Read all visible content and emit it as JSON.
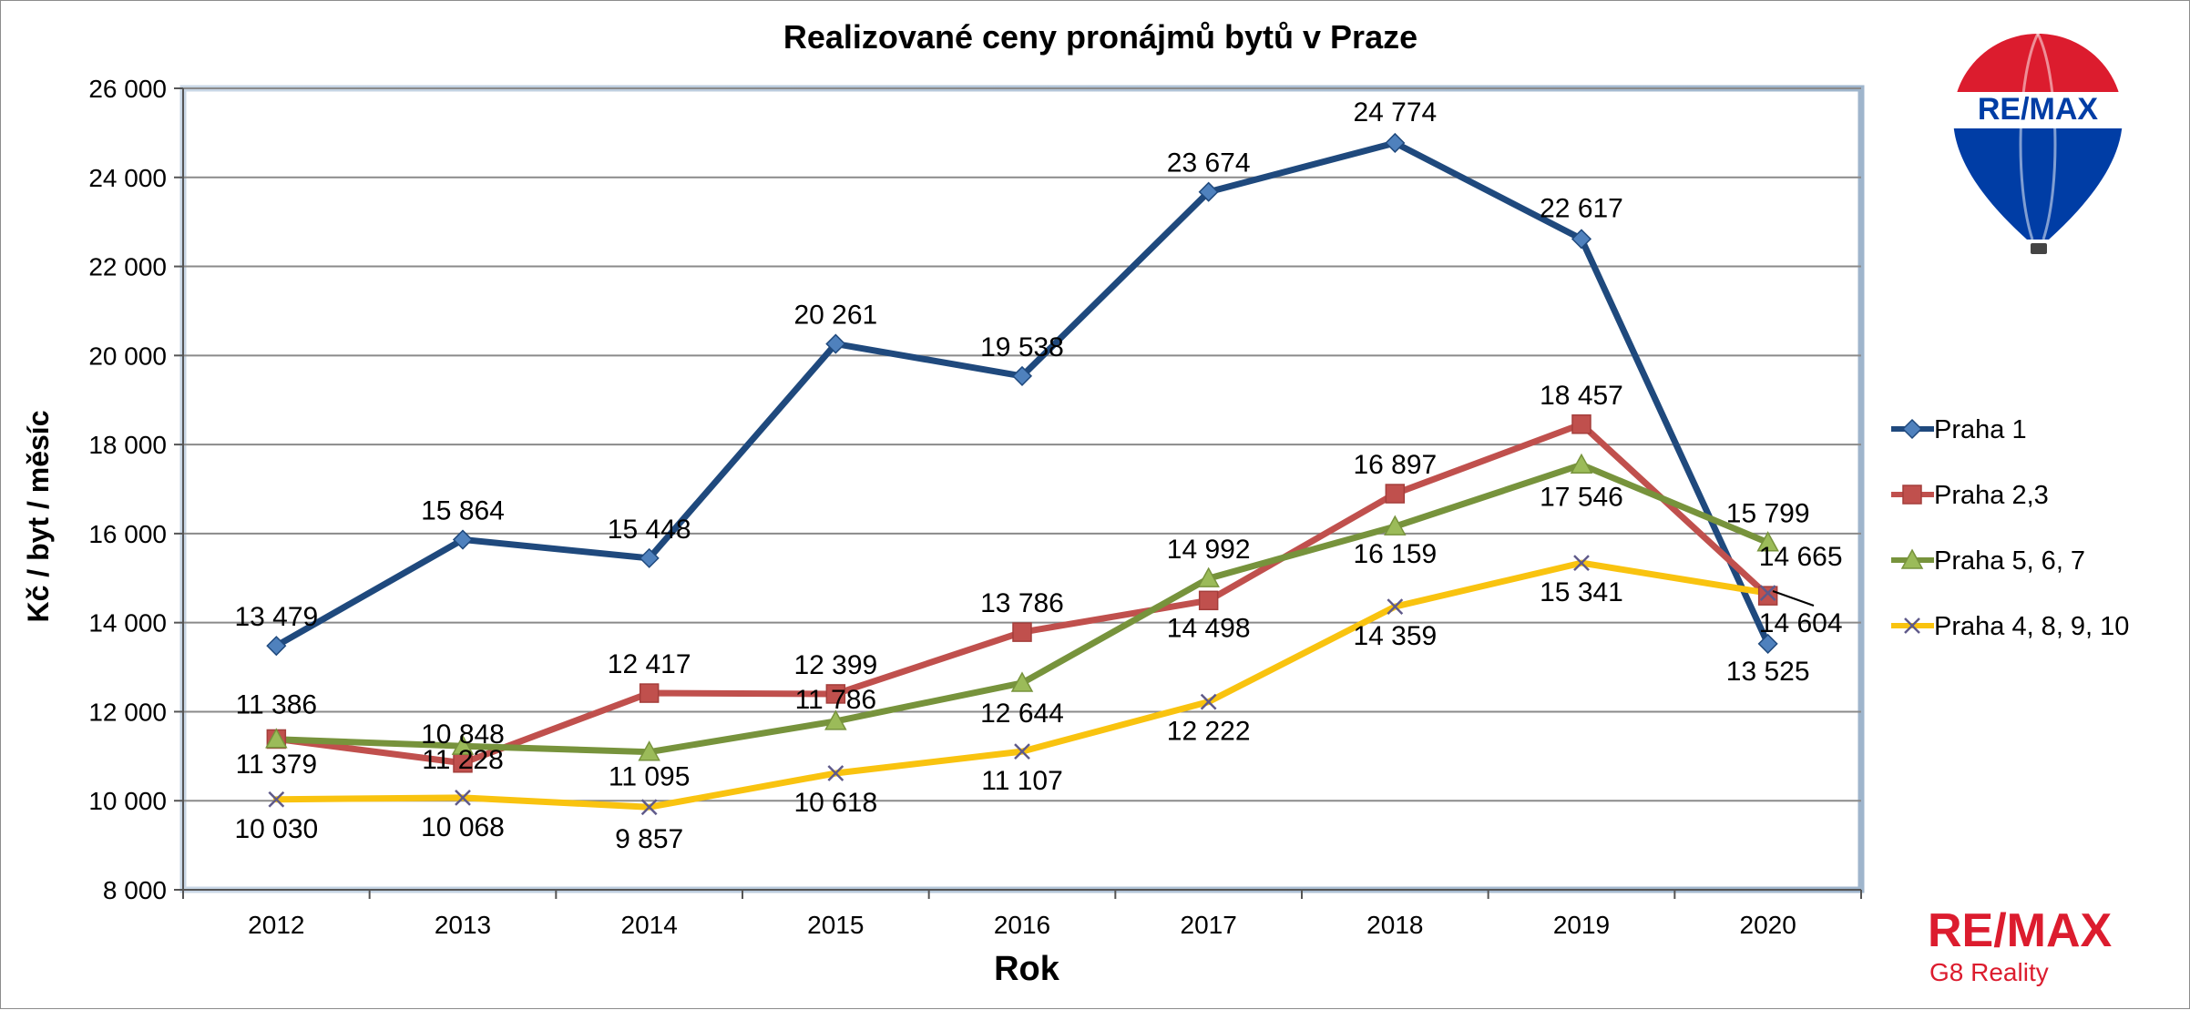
{
  "chart_data": {
    "type": "line",
    "title": "Realizované ceny pronájmů bytů v Praze",
    "xlabel": "Rok",
    "ylabel": "Kč / byt / měsíc",
    "categories": [
      "2012",
      "2013",
      "2014",
      "2015",
      "2016",
      "2017",
      "2018",
      "2019",
      "2020"
    ],
    "ylim": [
      8000,
      26000
    ],
    "yticks": [
      8000,
      10000,
      12000,
      14000,
      16000,
      18000,
      20000,
      22000,
      24000,
      26000
    ],
    "ytick_labels": [
      "8 000",
      "10 000",
      "12 000",
      "14 000",
      "16 000",
      "18 000",
      "20 000",
      "22 000",
      "24 000",
      "26 000"
    ],
    "grid": true,
    "legend_position": "right",
    "series": [
      {
        "name": "Praha 1",
        "color": "#1f497d",
        "marker": "diamond",
        "values": [
          13479,
          15864,
          15448,
          20261,
          19538,
          23674,
          24774,
          22617,
          13525
        ],
        "labels": [
          "13 479",
          "15 864",
          "15 448",
          "20 261",
          "19 538",
          "23 674",
          "24 774",
          "22 617",
          "13 525"
        ]
      },
      {
        "name": "Praha 2,3",
        "color": "#c0504d",
        "marker": "square",
        "values": [
          11386,
          10848,
          12417,
          12399,
          13786,
          14498,
          16897,
          18457,
          14604
        ],
        "labels": [
          "11 386",
          "10 848",
          "12 417",
          "12 399",
          "13 786",
          "14 498",
          "16 897",
          "18 457",
          "14 604"
        ]
      },
      {
        "name": "Praha 5, 6, 7",
        "color": "#77933c",
        "marker": "triangle",
        "values": [
          11379,
          11228,
          11095,
          11786,
          12644,
          14992,
          16159,
          17546,
          15799
        ],
        "labels": [
          "11 379",
          "11 228",
          "11 095",
          "11 786",
          "12 644",
          "14 992",
          "16 159",
          "17 546",
          "15 799"
        ]
      },
      {
        "name": "Praha 4, 8, 9, 10",
        "color": "#f9c30f",
        "marker": "x",
        "values": [
          10030,
          10068,
          9857,
          10618,
          11107,
          12222,
          14359,
          15341,
          14665
        ],
        "labels": [
          "10 030",
          "10 068",
          "9 857",
          "10 618",
          "11 107",
          "12 222",
          "14 359",
          "15 341",
          "14 665"
        ]
      }
    ]
  },
  "brand": {
    "balloon_text": "RE/MAX",
    "logo_text": "RE/MAX",
    "logo_subtitle": "G8 Reality",
    "red": "#dc1c2e",
    "blue": "#003da5"
  }
}
